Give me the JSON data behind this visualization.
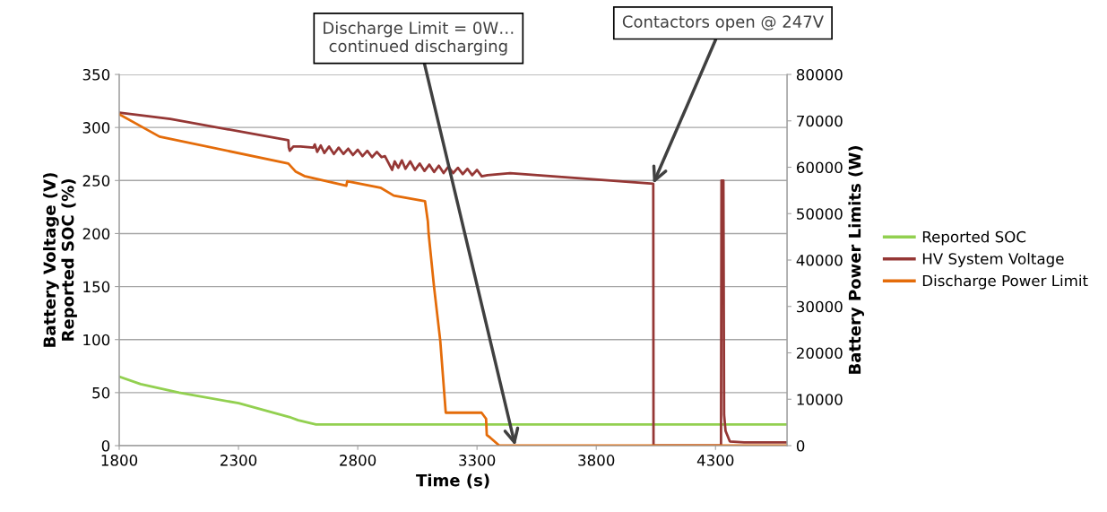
{
  "chart_data": {
    "type": "line",
    "xlabel": "Time (s)",
    "ylabel": "Battery Voltage (V)\nReported SOC (%)",
    "y2label": "Battery Power Limits (W)",
    "xlim": [
      1800,
      4600
    ],
    "xticks": [
      1800,
      2300,
      2800,
      3300,
      3800,
      4300
    ],
    "ylim": [
      0,
      350
    ],
    "yticks": [
      0,
      50,
      100,
      150,
      200,
      250,
      300,
      350
    ],
    "y2lim": [
      0,
      80000
    ],
    "y2ticks": [
      0,
      10000,
      20000,
      30000,
      40000,
      50000,
      60000,
      70000,
      80000
    ],
    "grid": "y",
    "legend": "right",
    "marker": "none",
    "line_style": "solid",
    "series": [
      {
        "name": "Reported SOC",
        "color": "#92d050",
        "x": [
          1800,
          1890,
          2051,
          2301,
          2513,
          2550,
          2625,
          4600
        ],
        "values": [
          65,
          58,
          50,
          40,
          27,
          24,
          20,
          20
        ]
      },
      {
        "name": "HV System Voltage",
        "color": "#953735",
        "x": [
          1800,
          2014,
          2509,
          2511,
          2515,
          2530,
          2560,
          2614,
          2620,
          2630,
          2645,
          2660,
          2680,
          2700,
          2720,
          2740,
          2760,
          2780,
          2800,
          2820,
          2840,
          2860,
          2880,
          2900,
          2914,
          2944,
          2955,
          2970,
          2985,
          3000,
          3020,
          3040,
          3060,
          3080,
          3100,
          3120,
          3140,
          3160,
          3180,
          3200,
          3220,
          3240,
          3260,
          3280,
          3300,
          3320,
          3344,
          3439,
          4039,
          4040,
          4323,
          4325,
          4333,
          4336,
          4342,
          4360,
          4420,
          4600
        ],
        "values": [
          314,
          308,
          288,
          281,
          278,
          282,
          282,
          281,
          284,
          277,
          283,
          276,
          282,
          275,
          281,
          275,
          280,
          274,
          279,
          273,
          278,
          272,
          277,
          272,
          273,
          260,
          268,
          262,
          269,
          261,
          268,
          260,
          266,
          259,
          265,
          258,
          264,
          257,
          263,
          257,
          262,
          256,
          261,
          255,
          260,
          254,
          255,
          257,
          247,
          0,
          0,
          250,
          250,
          29,
          14,
          4,
          3,
          3
        ]
      },
      {
        "name": "Discharge Power Limit",
        "color": "#e46c0a",
        "axis": "y2",
        "x": [
          1800,
          1969,
          2509,
          2539,
          2576,
          2625,
          2752,
          2756,
          2895,
          2951,
          3082,
          3094,
          3097,
          3120,
          3146,
          3169,
          3319,
          3338,
          3341,
          3356,
          3394,
          4600
        ],
        "values": [
          71400,
          66600,
          60800,
          59100,
          58100,
          57500,
          56000,
          57000,
          55600,
          53900,
          52700,
          48300,
          45800,
          34200,
          22600,
          7100,
          7100,
          5800,
          2300,
          1700,
          0,
          0
        ]
      }
    ],
    "annotations": [
      {
        "text": "Discharge Limit = 0W…\ncontinued discharging",
        "x": 3460,
        "y": 0
      },
      {
        "text": "Contactors open @ 247V",
        "x": 4039,
        "y": 247
      }
    ]
  }
}
